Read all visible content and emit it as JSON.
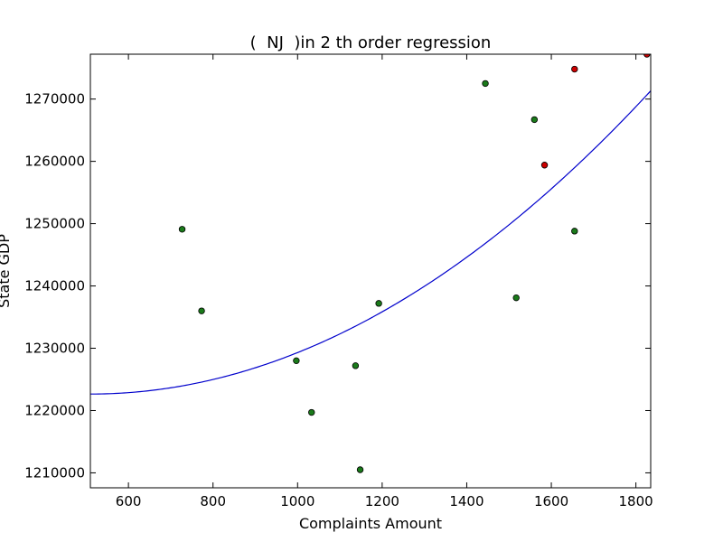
{
  "chart_data": {
    "type": "scatter",
    "title": "(  NJ  )in 2 th order regression",
    "xlabel": "Complaints Amount",
    "ylabel": "State GDP",
    "xlim": [
      510,
      1835
    ],
    "ylim": [
      1207600,
      1277200
    ],
    "x_ticks": [
      600,
      800,
      1000,
      1200,
      1400,
      1600,
      1800
    ],
    "y_ticks": [
      1210000,
      1220000,
      1230000,
      1240000,
      1250000,
      1260000,
      1270000
    ],
    "grid": false,
    "colors": {
      "green": "#1a7a1a",
      "red": "#cc0000",
      "line": "#0000cc"
    },
    "series": [
      {
        "color": "green",
        "points": [
          {
            "x": 727,
            "y": 1249100
          },
          {
            "x": 773,
            "y": 1236000
          },
          {
            "x": 997,
            "y": 1228000
          },
          {
            "x": 1033,
            "y": 1219700
          },
          {
            "x": 1137,
            "y": 1227200
          },
          {
            "x": 1148,
            "y": 1210500
          },
          {
            "x": 1192,
            "y": 1237200
          },
          {
            "x": 1444,
            "y": 1272500
          },
          {
            "x": 1517,
            "y": 1238100
          },
          {
            "x": 1560,
            "y": 1266700
          },
          {
            "x": 1655,
            "y": 1248800
          }
        ]
      },
      {
        "color": "red",
        "points": [
          {
            "x": 1584,
            "y": 1259400
          },
          {
            "x": 1655,
            "y": 1274800
          },
          {
            "x": 1826,
            "y": 1277200
          }
        ]
      }
    ],
    "regression_curve": {
      "type": "quadratic",
      "vertex_x": 510,
      "vertex_y": 1222650,
      "a": 0.027721
    }
  }
}
